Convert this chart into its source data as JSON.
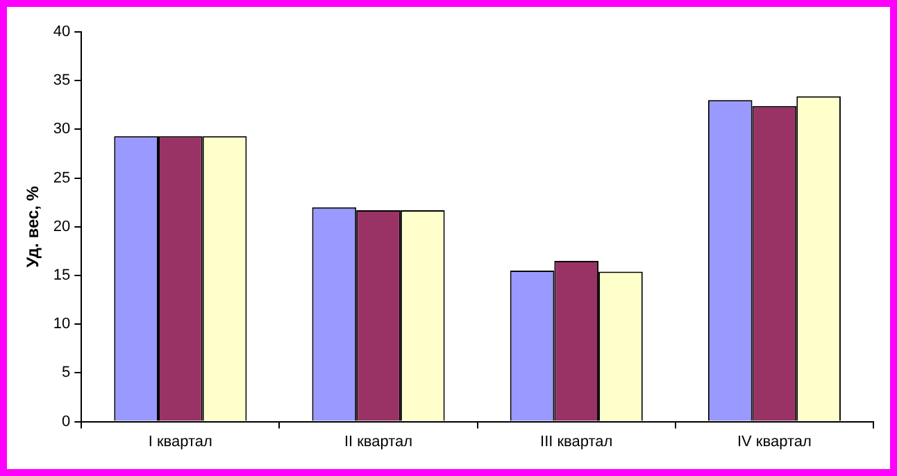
{
  "chart_data": {
    "type": "bar",
    "ylabel": "Уд. вес, %",
    "categories": [
      "I квартал",
      "II квартал",
      "III квартал",
      "IV квартал"
    ],
    "series": [
      {
        "color": "#9999ff",
        "values": [
          29.3,
          22.0,
          15.5,
          33.0
        ]
      },
      {
        "color": "#993366",
        "values": [
          29.3,
          21.7,
          16.5,
          32.4
        ]
      },
      {
        "color": "#ffffcc",
        "values": [
          29.3,
          21.7,
          15.4,
          33.4
        ]
      }
    ],
    "ylim": [
      0,
      40
    ],
    "yticks": [
      0,
      5,
      10,
      15,
      20,
      25,
      30,
      35,
      40
    ],
    "grid": false,
    "legend": false
  }
}
